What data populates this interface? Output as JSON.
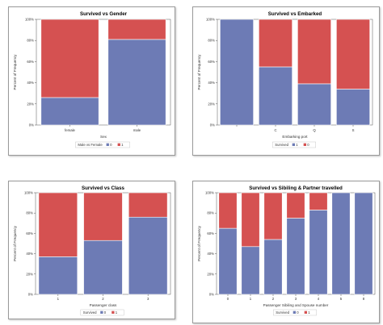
{
  "colors": {
    "blue": "#6d7bb5",
    "red": "#d55151",
    "bar_border": "#ffffff"
  },
  "chart_data": [
    {
      "type": "bar",
      "stacked": true,
      "title": "Survived vs Gender",
      "xlabel": "Sex",
      "ylabel": "Percent of Frequency",
      "ylim": [
        0,
        100
      ],
      "yticks": [
        "0%",
        "20%",
        "40%",
        "60%",
        "80%",
        "100%"
      ],
      "categories": [
        "female",
        "male"
      ],
      "legend": {
        "title": "Male vs Female",
        "items": [
          "0",
          "1"
        ],
        "placement": "bottom"
      },
      "series": [
        {
          "name": "Blue segment",
          "color": "blue",
          "values": [
            26,
            81
          ]
        },
        {
          "name": "Red segment",
          "color": "red",
          "values": [
            74,
            19
          ]
        }
      ],
      "grid": false
    },
    {
      "type": "bar",
      "stacked": true,
      "title": "Survived vs Embarked",
      "xlabel": "Embarking port",
      "ylabel": "Percent of Frequency",
      "ylim": [
        0,
        100
      ],
      "yticks": [
        "0%",
        "20%",
        "40%",
        "60%",
        "80%",
        "100%"
      ],
      "categories": [
        "",
        "C",
        "Q",
        "S"
      ],
      "legend": {
        "title": "Survived",
        "items": [
          "1",
          "0"
        ],
        "placement": "bottom"
      },
      "series": [
        {
          "name": "Blue segment",
          "color": "blue",
          "values": [
            100,
            55,
            39,
            34
          ]
        },
        {
          "name": "Red segment",
          "color": "red",
          "values": [
            0,
            45,
            61,
            66
          ]
        }
      ],
      "grid": false
    },
    {
      "type": "bar",
      "stacked": true,
      "title": "Survived vs Class",
      "xlabel": "Passenger class",
      "ylabel": "Percent of Frequency",
      "ylim": [
        0,
        100
      ],
      "yticks": [
        "0%",
        "20%",
        "40%",
        "60%",
        "80%",
        "100%"
      ],
      "categories": [
        "1",
        "2",
        "3"
      ],
      "legend": {
        "title": "Survived",
        "items": [
          "0",
          "1"
        ],
        "placement": "bottom"
      },
      "series": [
        {
          "name": "Blue segment",
          "color": "blue",
          "values": [
            37,
            53,
            76
          ]
        },
        {
          "name": "Red segment",
          "color": "red",
          "values": [
            63,
            47,
            24
          ]
        }
      ],
      "grid": false
    },
    {
      "type": "bar",
      "stacked": true,
      "title": "Survived vs Sibiling & Partner travelled",
      "xlabel": "Passenger Sibiling and Spouse number",
      "ylabel": "Percent of Frequency",
      "ylim": [
        0,
        100
      ],
      "yticks": [
        "0%",
        "20%",
        "40%",
        "60%",
        "80%",
        "100%"
      ],
      "categories": [
        "0",
        "1",
        "2",
        "3",
        "4",
        "5",
        "8"
      ],
      "legend": {
        "title": "Survived",
        "items": [
          "0",
          "1"
        ],
        "placement": "bottom"
      },
      "series": [
        {
          "name": "Blue segment",
          "color": "blue",
          "values": [
            65,
            47,
            54,
            75,
            83,
            100,
            100
          ]
        },
        {
          "name": "Red segment",
          "color": "red",
          "values": [
            35,
            53,
            46,
            25,
            17,
            0,
            0
          ]
        }
      ],
      "grid": false
    }
  ]
}
